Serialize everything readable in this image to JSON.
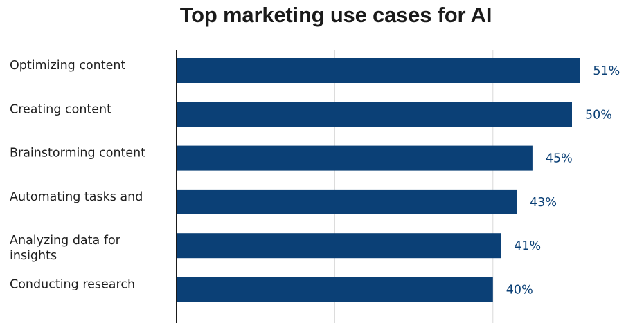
{
  "chart_data": {
    "type": "bar",
    "orientation": "horizontal",
    "title": "Top marketing use cases for AI",
    "categories": [
      [
        "Optimizing content"
      ],
      [
        "Creating content"
      ],
      [
        "Brainstorming content"
      ],
      [
        "Automating tasks and"
      ],
      [
        "Analyzing data for",
        "insights"
      ],
      [
        "Conducting research"
      ]
    ],
    "values": [
      51,
      50,
      45,
      43,
      41,
      40
    ],
    "value_labels": [
      "51%",
      "50%",
      "45%",
      "43%",
      "41%",
      "40%"
    ],
    "xlim": [
      0,
      60
    ],
    "grid": true,
    "colors": {
      "bar": "#0b4076",
      "value_text": "#0b4076",
      "grid": "#d9d9d9",
      "axis": "#1a1a1a"
    }
  }
}
